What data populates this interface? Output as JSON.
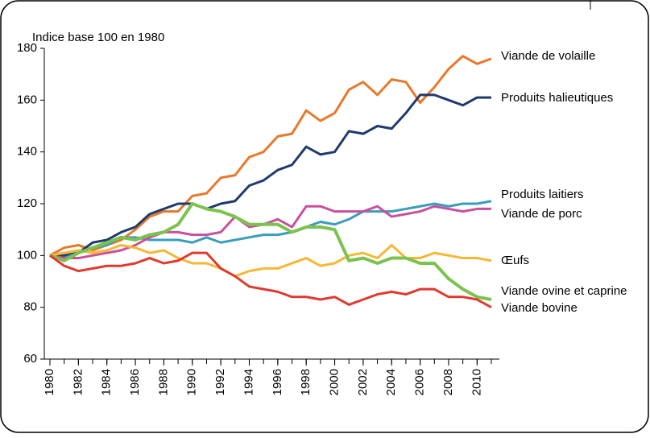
{
  "chart_data": {
    "type": "line",
    "ylabel": "Indice base 100 en 1980",
    "x": [
      1980,
      1981,
      1982,
      1983,
      1984,
      1985,
      1986,
      1987,
      1988,
      1989,
      1990,
      1991,
      1992,
      1993,
      1994,
      1995,
      1996,
      1997,
      1998,
      1999,
      2000,
      2001,
      2002,
      2003,
      2004,
      2005,
      2006,
      2007,
      2008,
      2009,
      2010,
      2011
    ],
    "xlim": [
      1980,
      2011
    ],
    "xticks": [
      1980,
      1982,
      1984,
      1986,
      1988,
      1990,
      1992,
      1994,
      1996,
      1998,
      2000,
      2002,
      2004,
      2006,
      2008,
      2010
    ],
    "ylim": [
      60,
      180
    ],
    "yticks": [
      60,
      80,
      100,
      120,
      140,
      160,
      180
    ],
    "grid": false,
    "series": [
      {
        "name": "Viande de volaille",
        "color": "#e8782a",
        "values": [
          100,
          103,
          104,
          102,
          104,
          106,
          110,
          115,
          117,
          117,
          123,
          124,
          130,
          131,
          138,
          140,
          146,
          147,
          156,
          152,
          155,
          164,
          167,
          162,
          168,
          167,
          159,
          165,
          172,
          177,
          174,
          176
        ]
      },
      {
        "name": "Produits halieutiques",
        "color": "#1f3a6e",
        "values": [
          100,
          100,
          101,
          105,
          106,
          109,
          111,
          116,
          118,
          120,
          120,
          118,
          120,
          121,
          127,
          129,
          133,
          135,
          142,
          139,
          140,
          148,
          147,
          150,
          149,
          155,
          162,
          162,
          160,
          158,
          161,
          161
        ]
      },
      {
        "name": "Produits laitiers",
        "color": "#3a9dbc",
        "values": [
          100,
          99,
          101,
          103,
          104,
          107,
          107,
          106,
          106,
          106,
          105,
          107,
          105,
          106,
          107,
          108,
          108,
          109,
          111,
          113,
          112,
          114,
          117,
          117,
          117,
          118,
          119,
          120,
          119,
          120,
          120,
          121
        ]
      },
      {
        "name": "Viande de porc",
        "color": "#c9509c",
        "values": [
          100,
          99,
          99,
          100,
          101,
          102,
          104,
          107,
          109,
          109,
          108,
          108,
          109,
          115,
          111,
          112,
          114,
          111,
          119,
          119,
          117,
          117,
          117,
          119,
          115,
          116,
          117,
          119,
          118,
          117,
          118,
          118
        ]
      },
      {
        "name": "Œufs",
        "color": "#f7b733",
        "values": [
          100,
          101,
          102,
          101,
          102,
          104,
          103,
          101,
          102,
          99,
          97,
          97,
          95,
          92,
          94,
          95,
          95,
          97,
          99,
          96,
          97,
          100,
          101,
          99,
          104,
          99,
          99,
          101,
          100,
          99,
          99,
          98
        ]
      },
      {
        "name": "Viande ovine et caprine",
        "color": "#7cc24e",
        "values": [
          100,
          98,
          101,
          103,
          105,
          107,
          106,
          108,
          109,
          112,
          120,
          118,
          117,
          115,
          112,
          112,
          112,
          109,
          111,
          111,
          110,
          98,
          99,
          97,
          99,
          99,
          97,
          97,
          91,
          87,
          84,
          83
        ]
      },
      {
        "name": "Viande bovine",
        "color": "#e03a2f",
        "values": [
          100,
          96,
          94,
          95,
          96,
          96,
          97,
          99,
          97,
          98,
          101,
          101,
          95,
          92,
          88,
          87,
          86,
          84,
          84,
          83,
          84,
          81,
          83,
          85,
          86,
          85,
          87,
          87,
          84,
          84,
          83,
          80
        ]
      }
    ]
  }
}
